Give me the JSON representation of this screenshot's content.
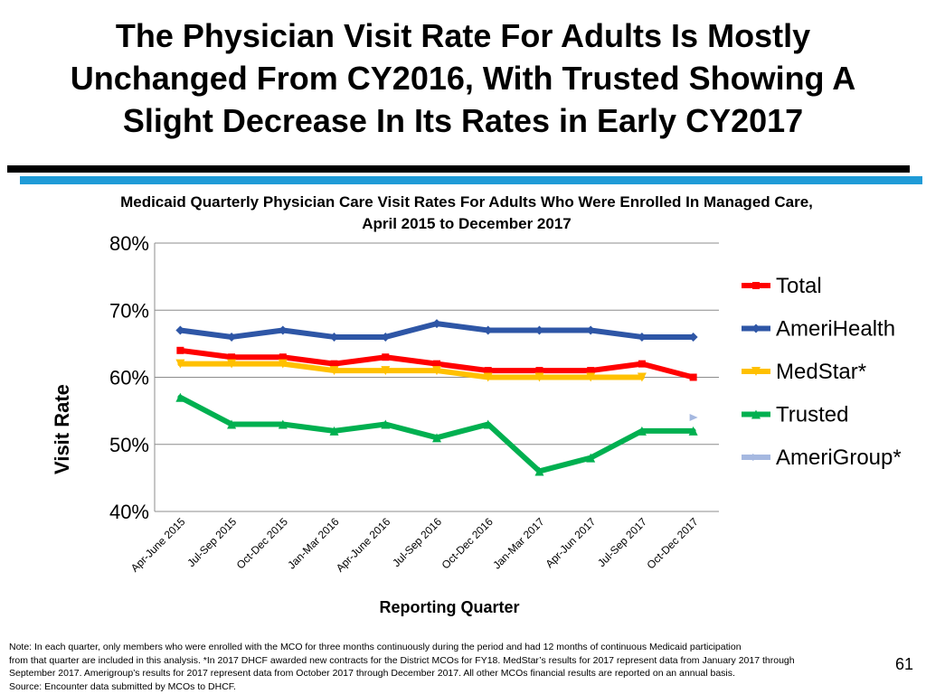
{
  "slide": {
    "title_lines": [
      "The Physician Visit Rate For Adults Is Mostly",
      "Unchanged From CY2016, With Trusted Showing A",
      "Slight Decrease In Its Rates in Early CY2017"
    ],
    "page_number": "61"
  },
  "chart_data": {
    "type": "line",
    "title_lines": [
      "Medicaid Quarterly Physician Care Visit Rates For Adults Who Were Enrolled In Managed Care,",
      "April 2015 to December 2017"
    ],
    "xlabel": "Reporting Quarter",
    "ylabel": "Visit Rate",
    "ylim": [
      0.4,
      0.8
    ],
    "yticks": [
      0.4,
      0.5,
      0.6,
      0.7,
      0.8
    ],
    "ytick_labels": [
      "40%",
      "50%",
      "60%",
      "70%",
      "80%"
    ],
    "grid": true,
    "legend_position": "right",
    "categories": [
      "Apr-June 2015",
      "Jul-Sep 2015",
      "Oct-Dec 2015",
      "Jan-Mar 2016",
      "Apr-June 2016",
      "Jul-Sep 2016",
      "Oct-Dec 2016",
      "Jan-Mar 2017",
      "Apr-Jun 2017",
      "Jul-Sep 2017",
      "Oct-Dec 2017"
    ],
    "series": [
      {
        "name": "Total",
        "color": "#ff0000",
        "marker": "square",
        "values": [
          0.64,
          0.63,
          0.63,
          0.62,
          0.63,
          0.62,
          0.61,
          0.61,
          0.61,
          0.62,
          0.6
        ]
      },
      {
        "name": "AmeriHealth",
        "color": "#2e56a6",
        "marker": "diamond",
        "values": [
          0.67,
          0.66,
          0.67,
          0.66,
          0.66,
          0.68,
          0.67,
          0.67,
          0.67,
          0.66,
          0.66
        ]
      },
      {
        "name": "MedStar*",
        "color": "#ffc000",
        "marker": "triangle-down",
        "values": [
          0.62,
          0.62,
          0.62,
          0.61,
          0.61,
          0.61,
          0.6,
          0.6,
          0.6,
          0.6,
          null
        ]
      },
      {
        "name": "Trusted",
        "color": "#00b050",
        "marker": "triangle-up",
        "values": [
          0.57,
          0.53,
          0.53,
          0.52,
          0.53,
          0.51,
          0.53,
          0.46,
          0.48,
          0.52,
          0.52
        ]
      },
      {
        "name": "AmeriGroup*",
        "color": "#a5b8e0",
        "marker": "triangle-right",
        "values": [
          null,
          null,
          null,
          null,
          null,
          null,
          null,
          null,
          null,
          null,
          0.54
        ]
      }
    ]
  },
  "footnote_lines": [
    "Note: In each quarter, only members who were enrolled with the MCO for three months continuously during the period and had 12 months of continuous Medicaid participation",
    "from that quarter are included in this analysis. *In 2017 DHCF awarded new contracts for the District MCOs for FY18.  MedStar’s results for 2017 represent data from January 2017 through",
    "September 2017.  Amerigroup’s results for 2017 represent data from October 2017 through December 2017.  All other MCOs financial results are reported on an annual basis.",
    "Source: Encounter data submitted by MCOs to DHCF."
  ]
}
